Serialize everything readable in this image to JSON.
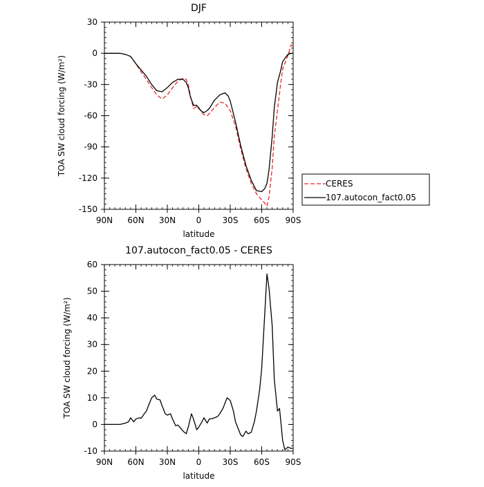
{
  "chart_data": [
    {
      "type": "line",
      "title": "DJF",
      "xlabel": "latitude",
      "ylabel": "TOA SW cloud forcing (W/m²)",
      "xlim": [
        90,
        -90
      ],
      "ylim": [
        -150,
        30
      ],
      "xticks": [
        90,
        60,
        30,
        0,
        -30,
        -60,
        -90
      ],
      "xtick_labels": [
        "90N",
        "60N",
        "30N",
        "0",
        "30S",
        "60S",
        "90S"
      ],
      "yticks": [
        30,
        0,
        -30,
        -60,
        -90,
        -120,
        -150
      ],
      "ytick_labels": [
        "30",
        "0",
        "-30",
        "-60",
        "-90",
        "-120",
        "-150"
      ],
      "legend": "outside-right-bottom",
      "series": [
        {
          "name": "CERES",
          "color": "#e8262b",
          "dash": "dashed",
          "x": [
            90,
            80,
            75,
            70,
            65,
            60,
            55,
            50,
            45,
            40,
            35,
            30,
            25,
            20,
            17,
            15,
            12,
            10,
            8,
            5,
            2,
            0,
            -3,
            -5,
            -8,
            -10,
            -15,
            -20,
            -25,
            -30,
            -35,
            -40,
            -45,
            -50,
            -55,
            -60,
            -63,
            -65,
            -67,
            -70,
            -72,
            -75,
            -78,
            -80,
            -82,
            -85,
            -88,
            -90
          ],
          "y": [
            0,
            0,
            0,
            -1,
            -3,
            -10,
            -18,
            -25,
            -33,
            -40,
            -44,
            -40,
            -33,
            -27,
            -25,
            -24,
            -25,
            -30,
            -41,
            -53,
            -51,
            -52,
            -57,
            -59,
            -60,
            -58,
            -52,
            -47,
            -48,
            -55,
            -70,
            -92,
            -111,
            -125,
            -135,
            -141,
            -144,
            -147,
            -138,
            -110,
            -80,
            -55,
            -30,
            -15,
            -10,
            -2,
            8,
            7
          ]
        },
        {
          "name": "107.autocon_fact0.05",
          "color": "#000000",
          "dash": "solid",
          "x": [
            90,
            80,
            75,
            70,
            65,
            60,
            55,
            50,
            45,
            40,
            35,
            30,
            25,
            20,
            15,
            12,
            10,
            8,
            5,
            2,
            0,
            -3,
            -5,
            -8,
            -10,
            -15,
            -20,
            -25,
            -28,
            -30,
            -35,
            -40,
            -45,
            -50,
            -55,
            -60,
            -63,
            -65,
            -67,
            -70,
            -72,
            -75,
            -78,
            -80,
            -82,
            -85,
            -88,
            -90
          ],
          "y": [
            0,
            0,
            0,
            -1,
            -3,
            -10,
            -16,
            -22,
            -30,
            -36,
            -37,
            -33,
            -28,
            -25,
            -25,
            -28,
            -33,
            -42,
            -50,
            -50,
            -53,
            -56,
            -57,
            -55,
            -53,
            -45,
            -40,
            -38,
            -41,
            -46,
            -66,
            -89,
            -108,
            -122,
            -132,
            -133,
            -130,
            -125,
            -112,
            -80,
            -52,
            -28,
            -17,
            -8,
            -5,
            -1,
            0,
            0
          ]
        }
      ]
    },
    {
      "type": "line",
      "title": "107.autocon_fact0.05 - CERES",
      "xlabel": "latitude",
      "ylabel": "TOA SW cloud forcing (W/m²)",
      "xlim": [
        90,
        -90
      ],
      "ylim": [
        -10,
        60
      ],
      "xticks": [
        90,
        60,
        30,
        0,
        -30,
        -60,
        -90
      ],
      "xtick_labels": [
        "90N",
        "60N",
        "30N",
        "0",
        "30S",
        "60S",
        "90S"
      ],
      "yticks": [
        60,
        50,
        40,
        30,
        20,
        10,
        0,
        -10
      ],
      "ytick_labels": [
        "60",
        "50",
        "40",
        "30",
        "20",
        "10",
        "0",
        "-10"
      ],
      "series": [
        {
          "name": "",
          "color": "#000000",
          "dash": "solid",
          "x": [
            90,
            85,
            80,
            75,
            70,
            67,
            65,
            62,
            60,
            57,
            55,
            52,
            50,
            47,
            45,
            42,
            40,
            37,
            35,
            32,
            30,
            27,
            25,
            22,
            20,
            17,
            15,
            12,
            10,
            7,
            5,
            2,
            0,
            -3,
            -5,
            -8,
            -10,
            -13,
            -15,
            -18,
            -20,
            -23,
            -25,
            -27,
            -30,
            -33,
            -35,
            -38,
            -40,
            -42,
            -45,
            -47,
            -50,
            -53,
            -55,
            -58,
            -60,
            -62,
            -65,
            -67,
            -70,
            -72,
            -75,
            -77,
            -80,
            -82,
            -85,
            -88,
            -90
          ],
          "y": [
            0,
            0,
            0,
            0,
            0.5,
            1,
            2.5,
            1,
            2,
            2.5,
            2.3,
            4,
            5,
            8,
            10,
            11,
            9.5,
            9.2,
            7,
            4,
            3.5,
            4,
            2,
            -0.5,
            -0.2,
            -1.5,
            -2.5,
            -3.5,
            -1,
            4,
            2,
            -2,
            -1,
            1,
            2.5,
            0.5,
            2,
            2.2,
            2.5,
            3,
            4,
            6,
            8,
            10,
            9,
            5,
            1,
            -2,
            -4,
            -4.5,
            -2.5,
            -3.5,
            -3,
            1,
            5,
            13,
            21,
            35,
            56.5,
            51,
            37,
            17,
            5,
            6,
            -6,
            -9.5,
            -8.5,
            -9,
            -9
          ]
        }
      ]
    }
  ]
}
